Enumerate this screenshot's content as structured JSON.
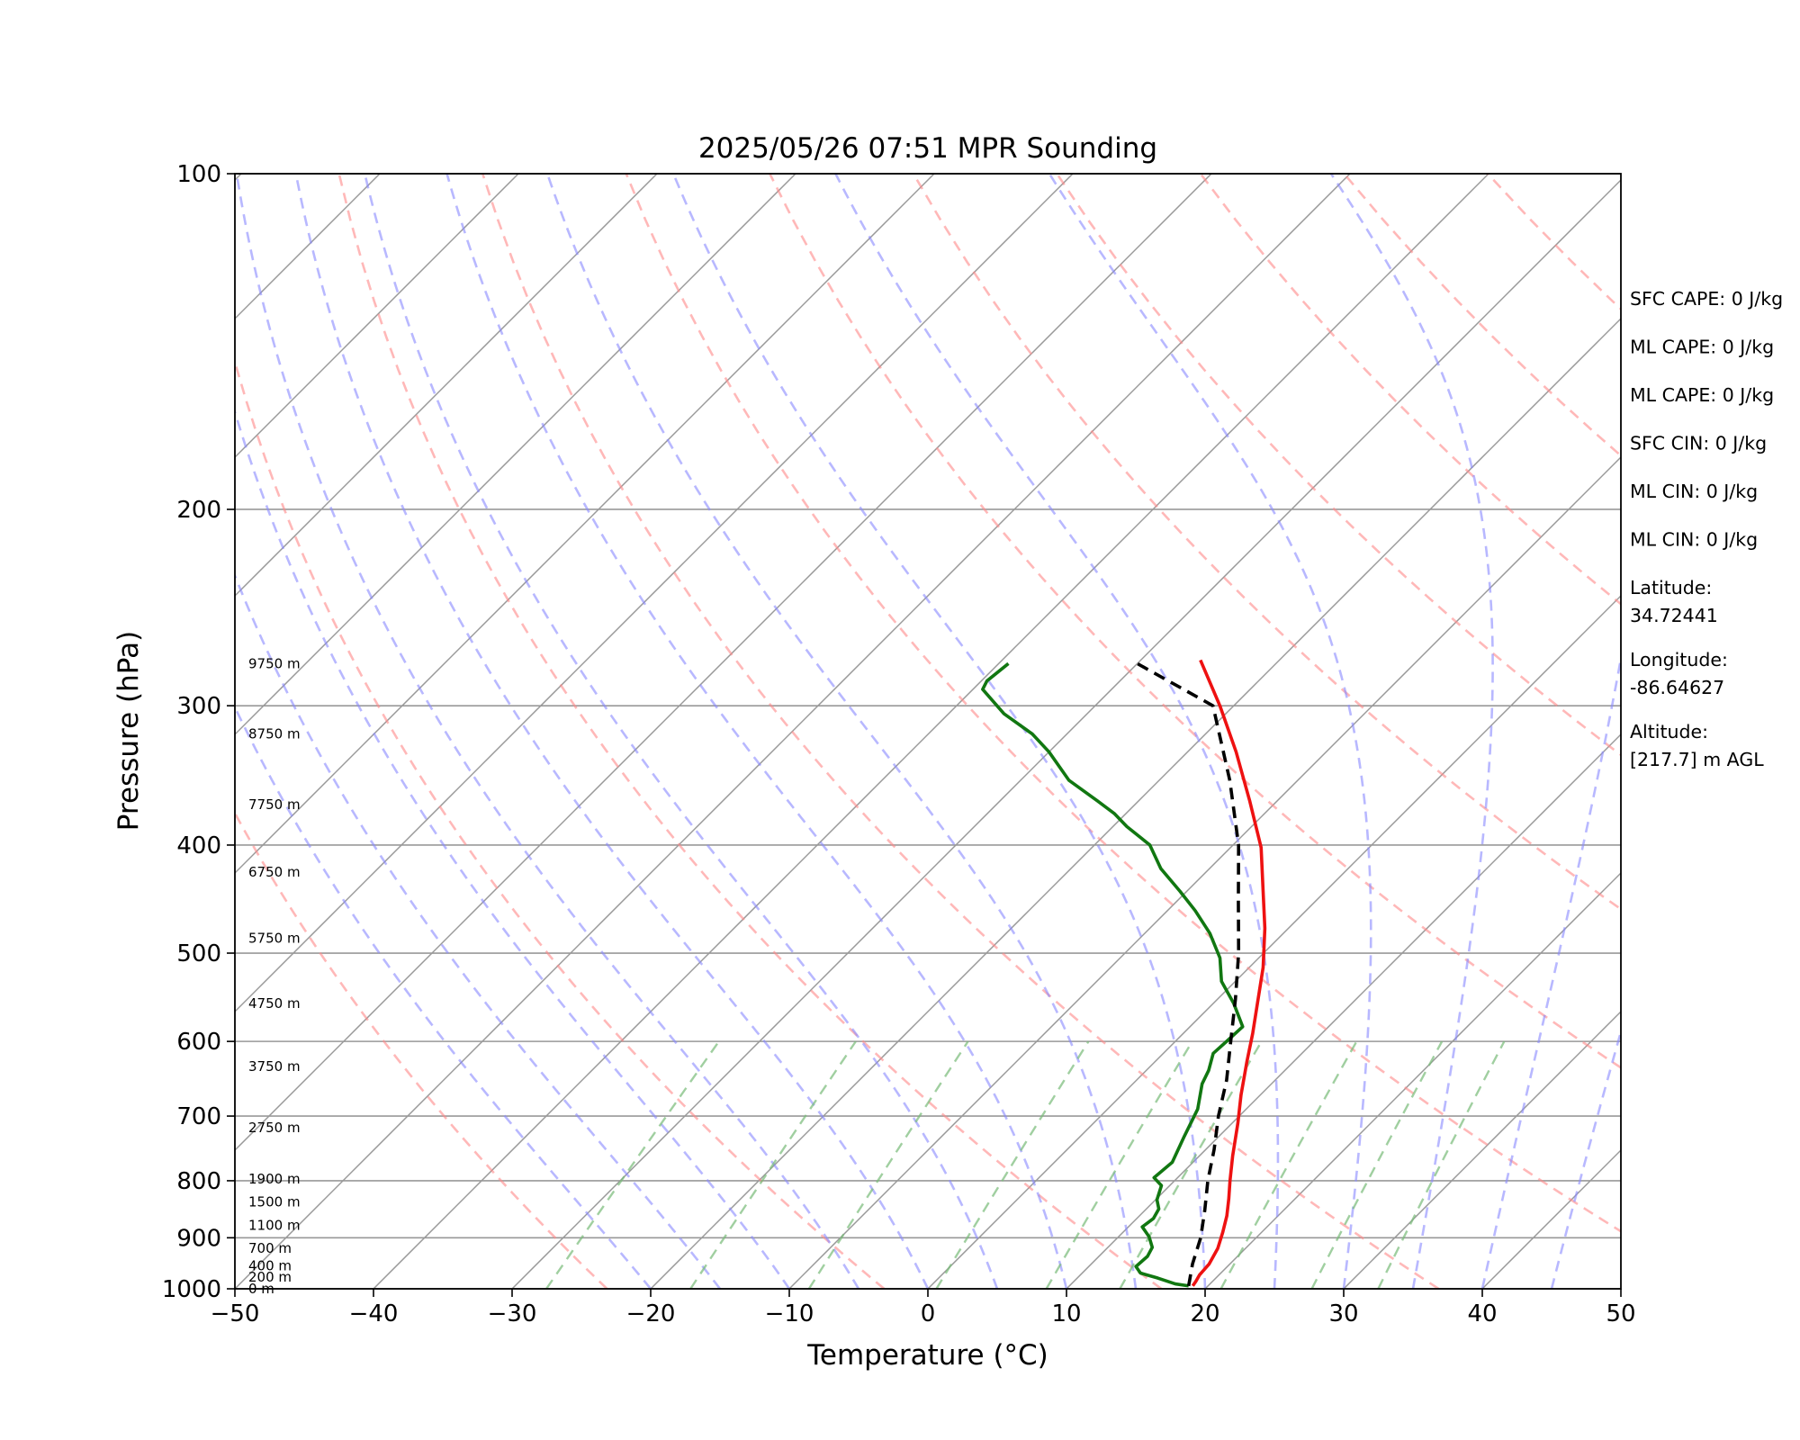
{
  "chart_data": {
    "type": "line",
    "subtype": "skew-T log-P sounding",
    "title": "2025/05/26 07:51 MPR Sounding",
    "xlabel": "Temperature (°C)",
    "ylabel": "Pressure (hPa)",
    "xlim": [
      -50,
      50
    ],
    "ylim": [
      1000,
      100
    ],
    "y_scale": "log",
    "x_ticks": [
      -50,
      -40,
      -30,
      -20,
      -10,
      0,
      10,
      20,
      30,
      40,
      50
    ],
    "x_tick_labels": [
      "−50",
      "−40",
      "−30",
      "−20",
      "−10",
      "0",
      "10",
      "20",
      "30",
      "40",
      "50"
    ],
    "y_ticks": [
      100,
      200,
      300,
      400,
      500,
      600,
      700,
      800,
      900,
      1000
    ],
    "y_tick_labels": [
      "100",
      "200",
      "300",
      "400",
      "500",
      "600",
      "700",
      "800",
      "900",
      "1000"
    ],
    "grid": true,
    "series": [
      {
        "key": "temperature",
        "color": "#ee1111",
        "style": "solid",
        "points": [
          [
            18.9,
            994
          ],
          [
            18.8,
            985
          ],
          [
            18.6,
            972
          ],
          [
            18.5,
            950
          ],
          [
            18.0,
            920
          ],
          [
            17.2,
            890
          ],
          [
            16.3,
            860
          ],
          [
            15.2,
            830
          ],
          [
            14.0,
            800
          ],
          [
            12.4,
            760
          ],
          [
            10.4,
            710
          ],
          [
            8.6,
            670
          ],
          [
            6.6,
            625
          ],
          [
            5.0,
            590
          ],
          [
            3.2,
            555
          ],
          [
            1.0,
            515
          ],
          [
            -1.7,
            475
          ],
          [
            -4.5,
            440
          ],
          [
            -7.8,
            402
          ],
          [
            -12.0,
            365
          ],
          [
            -16.5,
            330
          ],
          [
            -21.0,
            300
          ],
          [
            -25.7,
            273
          ]
        ]
      },
      {
        "key": "dewpoint",
        "color": "#117711",
        "style": "solid",
        "points": [
          [
            18.6,
            994
          ],
          [
            17.5,
            990
          ],
          [
            15.8,
            978
          ],
          [
            14.2,
            968
          ],
          [
            13.4,
            955
          ],
          [
            13.5,
            935
          ],
          [
            13.2,
            918
          ],
          [
            12.2,
            898
          ],
          [
            11.0,
            880
          ],
          [
            11.2,
            865
          ],
          [
            10.9,
            848
          ],
          [
            10.1,
            832
          ],
          [
            9.4,
            808
          ],
          [
            8.3,
            795
          ],
          [
            8.5,
            770
          ],
          [
            7.5,
            730
          ],
          [
            6.5,
            690
          ],
          [
            5.0,
            655
          ],
          [
            4.5,
            637
          ],
          [
            3.6,
            615
          ],
          [
            3.7,
            600
          ],
          [
            3.8,
            582
          ],
          [
            1.5,
            555
          ],
          [
            -1.0,
            530
          ],
          [
            -2.8,
            505
          ],
          [
            -5.3,
            480
          ],
          [
            -8.0,
            458
          ],
          [
            -10.5,
            440
          ],
          [
            -13.5,
            420
          ],
          [
            -16.0,
            400
          ],
          [
            -19.0,
            385
          ],
          [
            -20.8,
            375
          ],
          [
            -23.0,
            365
          ],
          [
            -26.5,
            350
          ],
          [
            -30.0,
            330
          ],
          [
            -32.5,
            318
          ],
          [
            -36.0,
            305
          ],
          [
            -39.3,
            290
          ],
          [
            -39.6,
            285
          ],
          [
            -39.3,
            275
          ]
        ]
      },
      {
        "key": "parcel",
        "color": "#000000",
        "style": "dashed",
        "points": [
          [
            18.6,
            994
          ],
          [
            17.3,
            950
          ],
          [
            16.0,
            900
          ],
          [
            14.3,
            850
          ],
          [
            12.4,
            800
          ],
          [
            10.6,
            750
          ],
          [
            8.5,
            700
          ],
          [
            6.5,
            650
          ],
          [
            4.0,
            600
          ],
          [
            1.3,
            550
          ],
          [
            -1.8,
            500
          ],
          [
            -5.5,
            450
          ],
          [
            -9.6,
            400
          ],
          [
            -14.9,
            350
          ],
          [
            -21.5,
            300
          ],
          [
            -30.0,
            275
          ]
        ]
      }
    ],
    "reference_lines": {
      "dry_adiabats_theta_K": [
        250,
        270,
        290,
        310,
        330,
        350,
        370,
        390,
        410,
        430,
        450,
        470,
        490
      ],
      "moist_adiabats_start_C_at_1000hPa": [
        -20,
        -15,
        -10,
        -5,
        0,
        5,
        10,
        15,
        20,
        25,
        30,
        35,
        40,
        45
      ],
      "mixing_ratio_lines_g_per_kg": [
        0.4,
        1,
        2,
        4,
        7,
        10,
        16,
        24,
        32
      ],
      "dry_adiabat_color": "#ff8888",
      "moist_adiabat_color": "#8888ff",
      "mixing_ratio_color": "#77bb77",
      "isotherm_color": "#999999"
    },
    "height_labels": [
      {
        "text": "0 m",
        "p": 1000
      },
      {
        "text": "200 m",
        "p": 976
      },
      {
        "text": "400 m",
        "p": 954
      },
      {
        "text": "700 m",
        "p": 920
      },
      {
        "text": "1100 m",
        "p": 877
      },
      {
        "text": "1500 m",
        "p": 836
      },
      {
        "text": "1900 m",
        "p": 797
      },
      {
        "text": "2750 m",
        "p": 717
      },
      {
        "text": "3750 m",
        "p": 632
      },
      {
        "text": "4750 m",
        "p": 555
      },
      {
        "text": "5750 m",
        "p": 485
      },
      {
        "text": "6750 m",
        "p": 423
      },
      {
        "text": "7750 m",
        "p": 368
      },
      {
        "text": "8750 m",
        "p": 318
      },
      {
        "text": "9750 m",
        "p": 275
      }
    ],
    "stats": [
      "SFC CAPE: 0 J/kg",
      "ML CAPE: 0 J/kg",
      "ML CAPE: 0 J/kg",
      "SFC CIN: 0 J/kg",
      "ML CIN: 0 J/kg",
      "ML CIN: 0 J/kg",
      "Latitude:\n34.72441",
      "Longitude:\n-86.64627",
      "Altitude:\n[217.7] m AGL"
    ]
  }
}
